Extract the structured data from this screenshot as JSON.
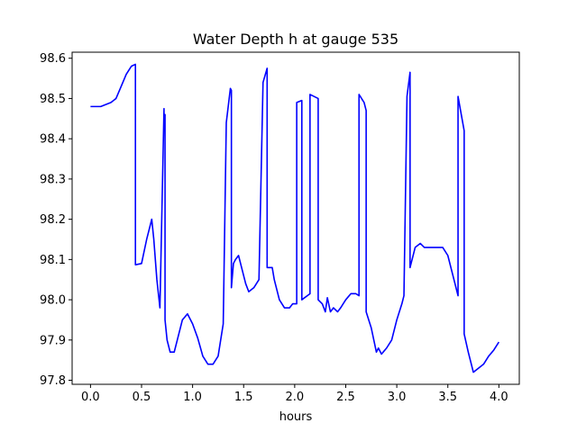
{
  "chart_data": {
    "type": "line",
    "title": "Water Depth h at gauge 535",
    "xlabel": "hours",
    "ylabel": "",
    "xlim": [
      -0.18,
      4.2
    ],
    "ylim": [
      97.79,
      98.615
    ],
    "xticks": [
      0.0,
      0.5,
      1.0,
      1.5,
      2.0,
      2.5,
      3.0,
      3.5,
      4.0
    ],
    "xtick_labels": [
      "0.0",
      "0.5",
      "1.0",
      "1.5",
      "2.0",
      "2.5",
      "3.0",
      "3.5",
      "4.0"
    ],
    "yticks": [
      97.8,
      97.9,
      98.0,
      98.1,
      98.2,
      98.3,
      98.4,
      98.5,
      98.6
    ],
    "ytick_labels": [
      "97.8",
      "97.9",
      "98.0",
      "98.1",
      "98.2",
      "98.3",
      "98.4",
      "98.5",
      "98.6"
    ],
    "grid": false,
    "series": [
      {
        "color": "#0000ff",
        "x": [
          0.0,
          0.1,
          0.2,
          0.25,
          0.3,
          0.35,
          0.4,
          0.44,
          0.44,
          0.5,
          0.55,
          0.6,
          0.62,
          0.65,
          0.68,
          0.72,
          0.72,
          0.73,
          0.73,
          0.75,
          0.78,
          0.82,
          0.85,
          0.9,
          0.95,
          1.0,
          1.05,
          1.1,
          1.15,
          1.2,
          1.25,
          1.3,
          1.33,
          1.37,
          1.38,
          1.38,
          1.4,
          1.42,
          1.45,
          1.48,
          1.52,
          1.55,
          1.6,
          1.65,
          1.69,
          1.69,
          1.73,
          1.73,
          1.78,
          1.8,
          1.85,
          1.9,
          1.95,
          1.98,
          2.02,
          2.02,
          2.07,
          2.07,
          2.15,
          2.15,
          2.23,
          2.23,
          2.27,
          2.3,
          2.32,
          2.35,
          2.38,
          2.42,
          2.45,
          2.5,
          2.55,
          2.6,
          2.63,
          2.63,
          2.68,
          2.7,
          2.7,
          2.75,
          2.8,
          2.82,
          2.85,
          2.9,
          2.95,
          3.0,
          3.05,
          3.07,
          3.1,
          3.13,
          3.13,
          3.18,
          3.23,
          3.27,
          3.3,
          3.35,
          3.4,
          3.45,
          3.5,
          3.55,
          3.6,
          3.6,
          3.66,
          3.66,
          3.7,
          3.75,
          3.8,
          3.85,
          3.9,
          3.95,
          4.0
        ],
        "y": [
          98.48,
          98.48,
          98.49,
          98.5,
          98.53,
          98.56,
          98.58,
          98.585,
          98.087,
          98.09,
          98.15,
          98.2,
          98.15,
          98.05,
          97.98,
          98.475,
          98.46,
          98.46,
          97.95,
          97.9,
          97.87,
          97.87,
          97.9,
          97.95,
          97.965,
          97.94,
          97.905,
          97.86,
          97.84,
          97.84,
          97.86,
          97.94,
          98.44,
          98.525,
          98.52,
          98.03,
          98.09,
          98.1,
          98.11,
          98.08,
          98.04,
          98.02,
          98.03,
          98.05,
          98.54,
          98.54,
          98.575,
          98.08,
          98.08,
          98.05,
          98.0,
          97.98,
          97.98,
          97.99,
          97.99,
          98.49,
          98.495,
          98.0,
          98.015,
          98.51,
          98.5,
          98.0,
          97.99,
          97.97,
          98.005,
          97.97,
          97.98,
          97.97,
          97.98,
          98.0,
          98.015,
          98.015,
          98.01,
          98.51,
          98.49,
          98.47,
          97.97,
          97.93,
          97.87,
          97.88,
          97.865,
          97.88,
          97.9,
          97.95,
          97.99,
          98.01,
          98.505,
          98.565,
          98.08,
          98.13,
          98.14,
          98.13,
          98.13,
          98.13,
          98.13,
          98.13,
          98.11,
          98.06,
          98.01,
          98.505,
          98.42,
          97.915,
          97.87,
          97.82,
          97.83,
          97.84,
          97.86,
          97.875,
          97.895
        ]
      }
    ]
  }
}
